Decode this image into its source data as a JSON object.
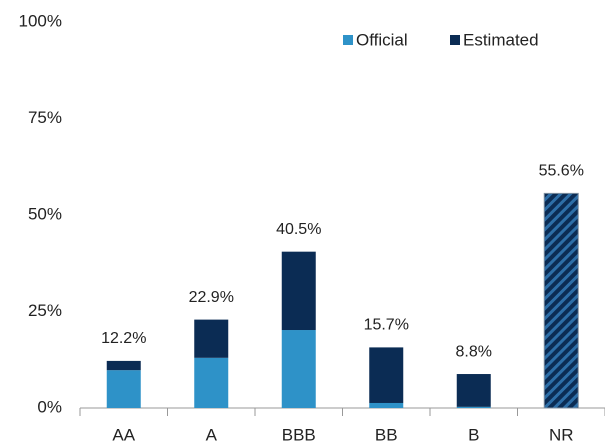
{
  "chart_data": {
    "type": "bar",
    "stacked": true,
    "categories": [
      "AA",
      "A",
      "BBB",
      "BB",
      "B",
      "NR"
    ],
    "series": [
      {
        "name": "Official",
        "color": "#2e92c8",
        "values": [
          9.8,
          13.0,
          20.2,
          1.3,
          0.3,
          0
        ]
      },
      {
        "name": "Estimated",
        "color": "#0b2c54",
        "values": [
          2.4,
          9.9,
          20.3,
          14.4,
          8.5,
          55.6
        ]
      }
    ],
    "totals": [
      12.2,
      22.9,
      40.5,
      15.7,
      8.8,
      55.6
    ],
    "total_labels": [
      "12.2%",
      "22.9%",
      "40.5%",
      "15.7%",
      "8.8%",
      "55.6%"
    ],
    "hatched_category": "NR",
    "hatch_color": "#2e6fa8",
    "ylim": [
      0,
      100
    ],
    "yticks": [
      {
        "value": 0,
        "label": "0%"
      },
      {
        "value": 25,
        "label": "25%"
      },
      {
        "value": 50,
        "label": "50%"
      },
      {
        "value": 75,
        "label": "75%"
      },
      {
        "value": 100,
        "label": "100%"
      }
    ],
    "grid": false,
    "legend": "top-right"
  }
}
